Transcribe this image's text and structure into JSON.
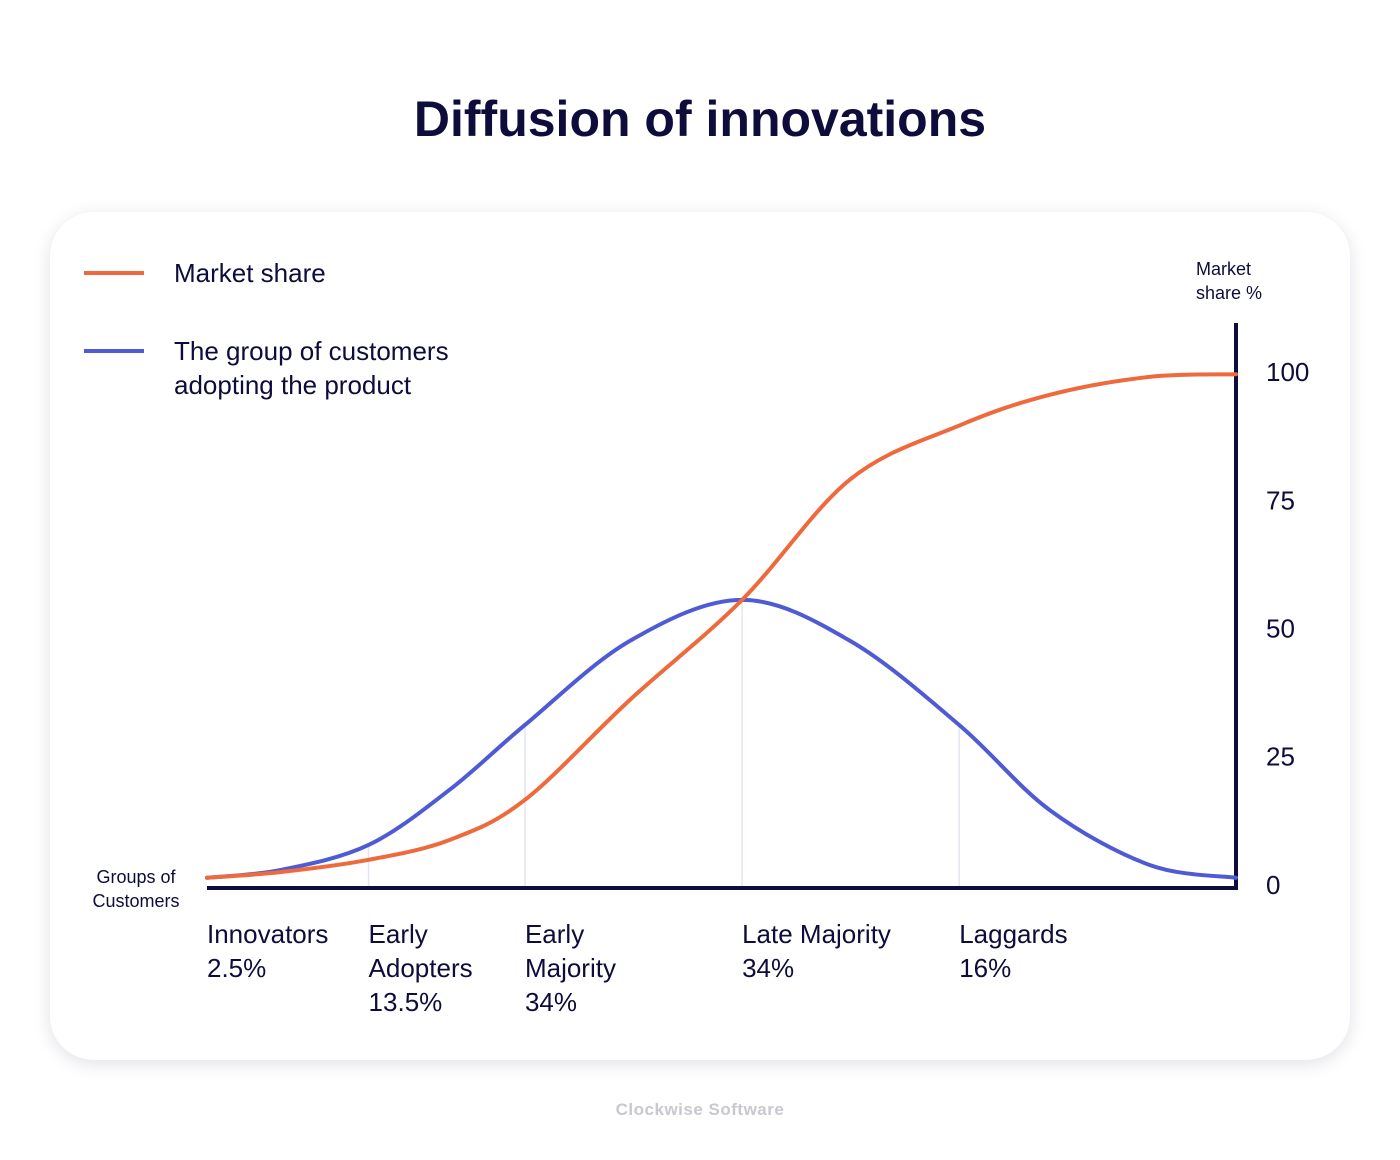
{
  "chart_data": {
    "type": "line",
    "title": "Diffusion of innovations",
    "watermark": "Clockwise Software",
    "x_axis_label": "Groups of Customers",
    "y_axis_label": "Market share %",
    "xlim": [
      0,
      100
    ],
    "ylim": [
      0,
      110
    ],
    "yticks": [
      0,
      25,
      50,
      75,
      100
    ],
    "grid": false,
    "legend": "top-left",
    "x": [
      0,
      7.1,
      15.7,
      23.6,
      30.9,
      41.1,
      52,
      62.5,
      73.1,
      81.9,
      91.6,
      100
    ],
    "series": [
      {
        "name": "Market share",
        "color": "#ee6a3c",
        "values": [
          1.8,
          2.9,
          5.3,
          9.2,
          17,
          36.5,
          56,
          79.5,
          90,
          96,
          99.5,
          100
        ]
      },
      {
        "name": "The group of customers adopting the product",
        "color": "#4f5bd5",
        "values": [
          1.8,
          3.3,
          8.2,
          19,
          31.6,
          48,
          56,
          48,
          31.6,
          15,
          4.3,
          1.8
        ]
      }
    ],
    "groups": [
      "Innovators",
      "Early Adopters",
      "Early Majority",
      "Late Majority",
      "Laggards"
    ],
    "group_starts": [
      0,
      15.7,
      30.9,
      52,
      73.1
    ],
    "group_shares": [
      2.5,
      13.5,
      34,
      34,
      16
    ],
    "group_share_labels": [
      "2.5%",
      "13.5%",
      "34%",
      "34%",
      "16%"
    ]
  }
}
